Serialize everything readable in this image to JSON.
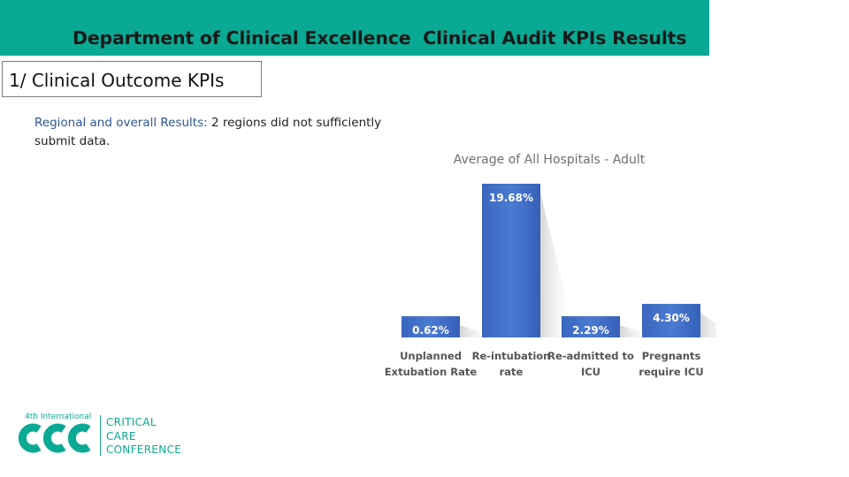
{
  "header": {
    "title": "Department of Clinical Excellence  Clinical Audit KPIs Results"
  },
  "section": {
    "label": "1/ Clinical Outcome KPIs"
  },
  "subtitle": {
    "lead": "Regional and overall Results:",
    "text": " 2 regions did not sufficiently submit data."
  },
  "colors": {
    "header_bg": "#0aa993",
    "bar": "#3f6fc4",
    "brand": "#0aa993"
  },
  "chart_data": {
    "type": "bar",
    "title": "Average of All  Hospitals - Adult",
    "categories": [
      [
        "Unplanned",
        "Extubation Rate"
      ],
      [
        "Re-intubation",
        "rate"
      ],
      [
        "Re-admitted to",
        "ICU"
      ],
      [
        "Pregnants",
        "require ICU"
      ]
    ],
    "values": [
      0.62,
      19.68,
      2.29,
      4.3
    ],
    "data_labels": [
      "0.62%",
      "19.68%",
      "2.29%",
      "4.30%"
    ],
    "unit": "%",
    "xlabel": "",
    "ylabel": "",
    "ylim": [
      0,
      20
    ],
    "grid": false,
    "legend": "none"
  },
  "logo": {
    "superscript": "4th International",
    "lines": [
      "CRITICAL",
      "CARE",
      "CONFERENCE"
    ],
    "icon": "ccc-logo-icon"
  }
}
